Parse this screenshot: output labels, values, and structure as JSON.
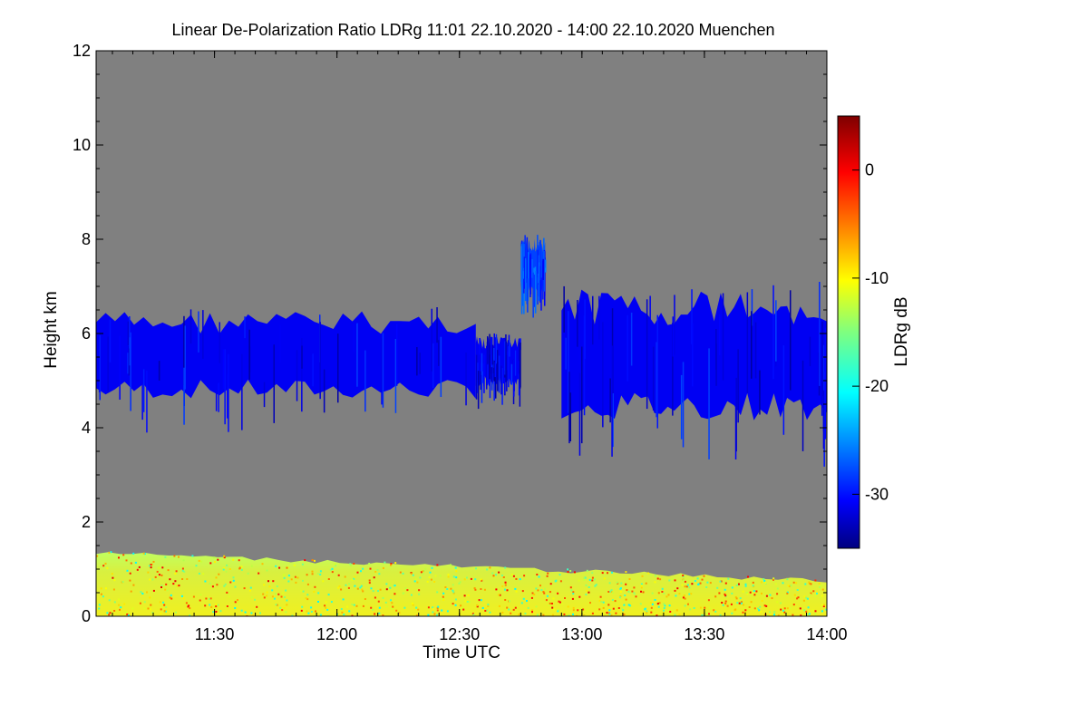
{
  "chart_data": {
    "type": "heatmap",
    "title": "Linear De-Polarization Ratio LDRg   11:01 22.10.2020 - 14:00 22.10.2020 Muenchen",
    "xlabel": "Time UTC",
    "ylabel": "Height km",
    "colorbar_label": "LDRg dB",
    "x_range": [
      "11:01",
      "14:00"
    ],
    "xlim_minutes_utc": [
      661,
      840
    ],
    "x_ticks": [
      {
        "label": "11:30",
        "minute": 690
      },
      {
        "label": "12:00",
        "minute": 720
      },
      {
        "label": "12:30",
        "minute": 750
      },
      {
        "label": "13:00",
        "minute": 780
      },
      {
        "label": "13:30",
        "minute": 810
      },
      {
        "label": "14:00",
        "minute": 840
      }
    ],
    "ylim": [
      0,
      12
    ],
    "y_ticks": [
      0,
      2,
      4,
      6,
      8,
      10,
      12
    ],
    "colorbar_range": [
      -35,
      5
    ],
    "colorbar_ticks": [
      0,
      -10,
      -20,
      -30
    ],
    "colormap": "jet",
    "background_color": "#808080",
    "features": [
      {
        "type": "cloud_layer",
        "value_db": -31,
        "time_start": "11:01",
        "time_end": "12:34",
        "base_km": 4.5,
        "top_km": 6.6
      },
      {
        "type": "cloud_layer",
        "value_db": -31,
        "time_start": "12:34",
        "time_end": "12:45",
        "base_km": 4.8,
        "top_km": 6.0
      },
      {
        "type": "cloud_streak",
        "value_db": -28,
        "time_start": "12:45",
        "time_end": "12:51",
        "base_km": 6.8,
        "top_km": 8.1
      },
      {
        "type": "cloud_layer",
        "value_db": -31,
        "time_start": "12:55",
        "time_end": "14:00",
        "base_km": 4.0,
        "top_km": 7.1
      },
      {
        "type": "boundary_layer_aerosol",
        "value_db": -10,
        "time_start": "11:01",
        "time_end": "14:00",
        "base_km": 0.0,
        "top_km": 1.4
      }
    ]
  }
}
